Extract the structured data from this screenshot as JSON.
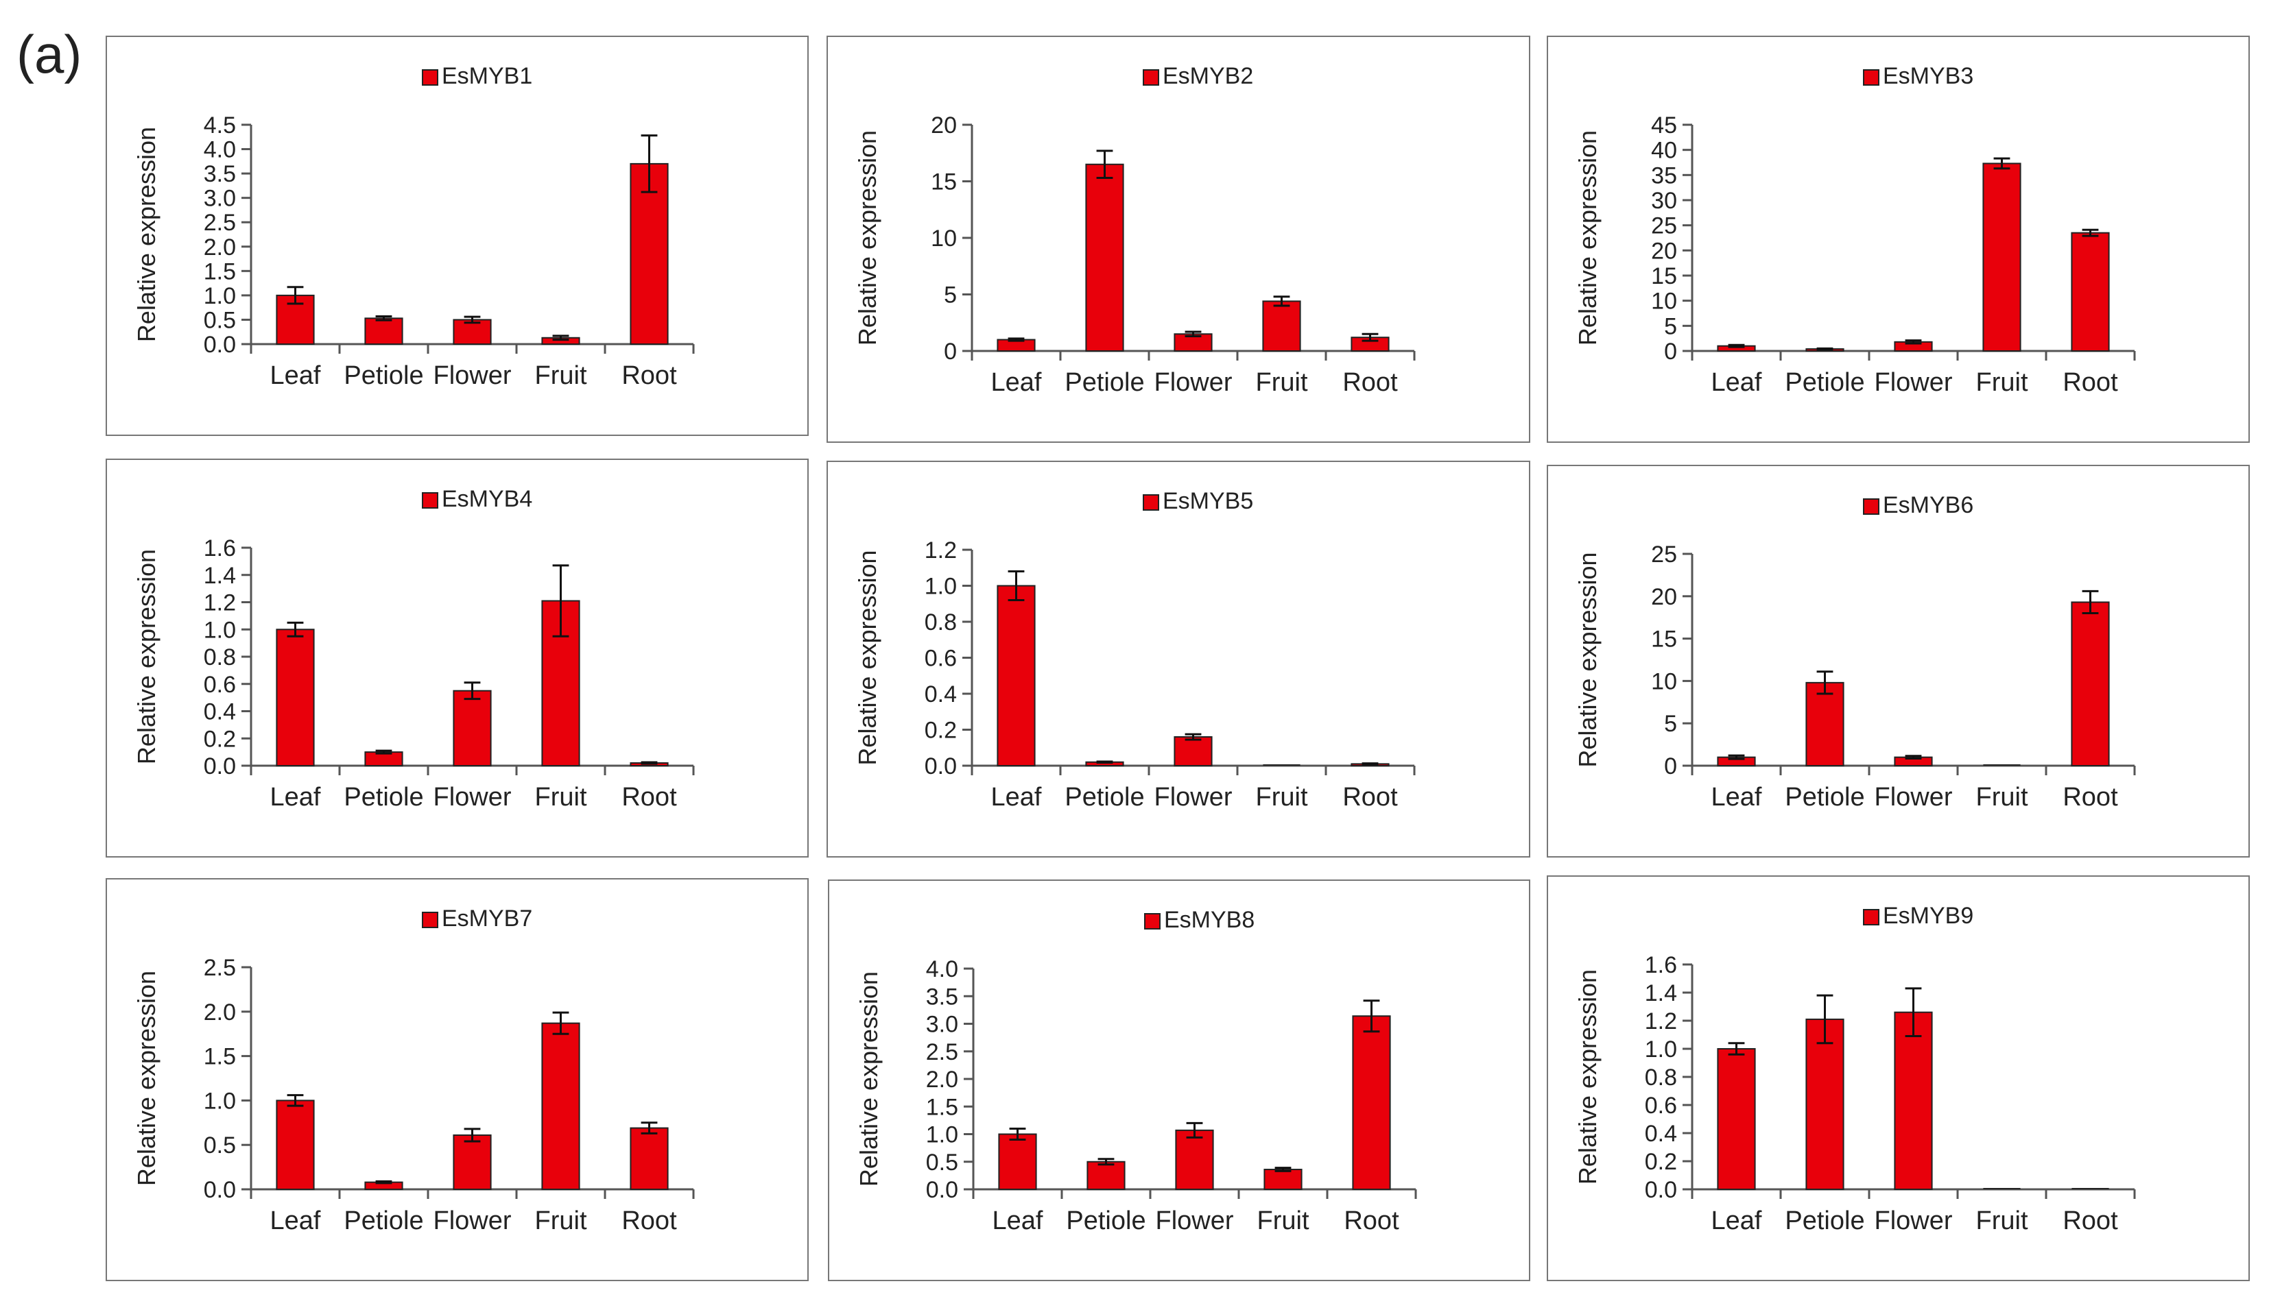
{
  "figure_label": "(a)",
  "colors": {
    "bar": "#e8000b",
    "bar_stroke": "#222222",
    "axis": "#555555"
  },
  "chart_data": [
    {
      "type": "bar",
      "title": "EsMYB1",
      "legend": "EsMYB1",
      "ylabel": "Relative expression",
      "xlabel": "",
      "categories": [
        "Leaf",
        "Petiole",
        "Flower",
        "Fruit",
        "Root"
      ],
      "values": [
        1.0,
        0.53,
        0.5,
        0.13,
        3.7
      ],
      "errors": [
        0.17,
        0.04,
        0.06,
        0.04,
        0.58
      ],
      "ylim": [
        0,
        4.5
      ],
      "yticks": [
        "0.0",
        "0.5",
        "1.0",
        "1.5",
        "2.0",
        "2.5",
        "3.0",
        "3.5",
        "4.0",
        "4.5"
      ],
      "legend_position": "top-center"
    },
    {
      "type": "bar",
      "title": "EsMYB2",
      "legend": "EsMYB2",
      "ylabel": "Relative expression",
      "xlabel": "",
      "categories": [
        "Leaf",
        "Petiole",
        "Flower",
        "Fruit",
        "Root"
      ],
      "values": [
        1.0,
        16.5,
        1.5,
        4.4,
        1.2
      ],
      "errors": [
        0.1,
        1.2,
        0.2,
        0.4,
        0.3
      ],
      "ylim": [
        0,
        20
      ],
      "yticks": [
        "0",
        "5",
        "10",
        "15",
        "20"
      ],
      "legend_position": "top-center"
    },
    {
      "type": "bar",
      "title": "EsMYB3",
      "legend": "EsMYB3",
      "ylabel": "Relative expression",
      "xlabel": "",
      "categories": [
        "Leaf",
        "Petiole",
        "Flower",
        "Fruit",
        "Root"
      ],
      "values": [
        1.0,
        0.4,
        1.8,
        37.3,
        23.5
      ],
      "errors": [
        0.2,
        0.1,
        0.3,
        1.0,
        0.6
      ],
      "ylim": [
        0,
        45
      ],
      "yticks": [
        "0",
        "5",
        "10",
        "15",
        "20",
        "25",
        "30",
        "35",
        "40",
        "45"
      ],
      "legend_position": "top-center"
    },
    {
      "type": "bar",
      "title": "EsMYB4",
      "legend": "EsMYB4",
      "ylabel": "Relative expression",
      "xlabel": "",
      "categories": [
        "Leaf",
        "Petiole",
        "Flower",
        "Fruit",
        "Root"
      ],
      "values": [
        1.0,
        0.1,
        0.55,
        1.21,
        0.02
      ],
      "errors": [
        0.05,
        0.01,
        0.06,
        0.26,
        0.005
      ],
      "ylim": [
        0,
        1.6
      ],
      "yticks": [
        "0.0",
        "0.2",
        "0.4",
        "0.6",
        "0.8",
        "1.0",
        "1.2",
        "1.4",
        "1.6"
      ],
      "legend_position": "top-center"
    },
    {
      "type": "bar",
      "title": "EsMYB5",
      "legend": "EsMYB5",
      "ylabel": "Relative expression",
      "xlabel": "",
      "categories": [
        "Leaf",
        "Petiole",
        "Flower",
        "Fruit",
        "Root"
      ],
      "values": [
        1.0,
        0.02,
        0.16,
        0.0,
        0.01
      ],
      "errors": [
        0.08,
        0.003,
        0.015,
        0.0,
        0.003
      ],
      "ylim": [
        0,
        1.2
      ],
      "yticks": [
        "0.0",
        "0.2",
        "0.4",
        "0.6",
        "0.8",
        "1.0",
        "1.2"
      ],
      "legend_position": "top-center"
    },
    {
      "type": "bar",
      "title": "EsMYB6",
      "legend": "EsMYB6",
      "ylabel": "Relative expression",
      "xlabel": "",
      "categories": [
        "Leaf",
        "Petiole",
        "Flower",
        "Fruit",
        "Root"
      ],
      "values": [
        1.0,
        9.8,
        1.0,
        0.0,
        19.3
      ],
      "errors": [
        0.2,
        1.3,
        0.15,
        0.0,
        1.3
      ],
      "ylim": [
        0,
        25
      ],
      "yticks": [
        "0",
        "5",
        "10",
        "15",
        "20",
        "25"
      ],
      "legend_position": "top-center"
    },
    {
      "type": "bar",
      "title": "EsMYB7",
      "legend": "EsMYB7",
      "ylabel": "Relative expression",
      "xlabel": "",
      "categories": [
        "Leaf",
        "Petiole",
        "Flower",
        "Fruit",
        "Root"
      ],
      "values": [
        1.0,
        0.08,
        0.61,
        1.87,
        0.69
      ],
      "errors": [
        0.06,
        0.01,
        0.07,
        0.12,
        0.06
      ],
      "ylim": [
        0,
        2.5
      ],
      "yticks": [
        "0.0",
        "0.5",
        "1.0",
        "1.5",
        "2.0",
        "2.5"
      ],
      "legend_position": "top-center"
    },
    {
      "type": "bar",
      "title": "EsMYB8",
      "legend": "EsMYB8",
      "ylabel": "Relative expression",
      "xlabel": "",
      "categories": [
        "Leaf",
        "Petiole",
        "Flower",
        "Fruit",
        "Root"
      ],
      "values": [
        1.0,
        0.5,
        1.07,
        0.36,
        3.14
      ],
      "errors": [
        0.1,
        0.05,
        0.13,
        0.03,
        0.28
      ],
      "ylim": [
        0,
        4.0
      ],
      "yticks": [
        "0.0",
        "0.5",
        "1.0",
        "1.5",
        "2.0",
        "2.5",
        "3.0",
        "3.5",
        "4.0"
      ],
      "legend_position": "top-center"
    },
    {
      "type": "bar",
      "title": "EsMYB9",
      "legend": "EsMYB9",
      "ylabel": "Relative expression",
      "xlabel": "",
      "categories": [
        "Leaf",
        "Petiole",
        "Flower",
        "Fruit",
        "Root"
      ],
      "values": [
        1.0,
        1.21,
        1.26,
        0.0,
        0.0
      ],
      "errors": [
        0.04,
        0.17,
        0.17,
        0.0,
        0.0
      ],
      "ylim": [
        0,
        1.6
      ],
      "yticks": [
        "0.0",
        "0.2",
        "0.4",
        "0.6",
        "0.8",
        "1.0",
        "1.2",
        "1.4",
        "1.6"
      ],
      "legend_position": "top-center"
    }
  ]
}
